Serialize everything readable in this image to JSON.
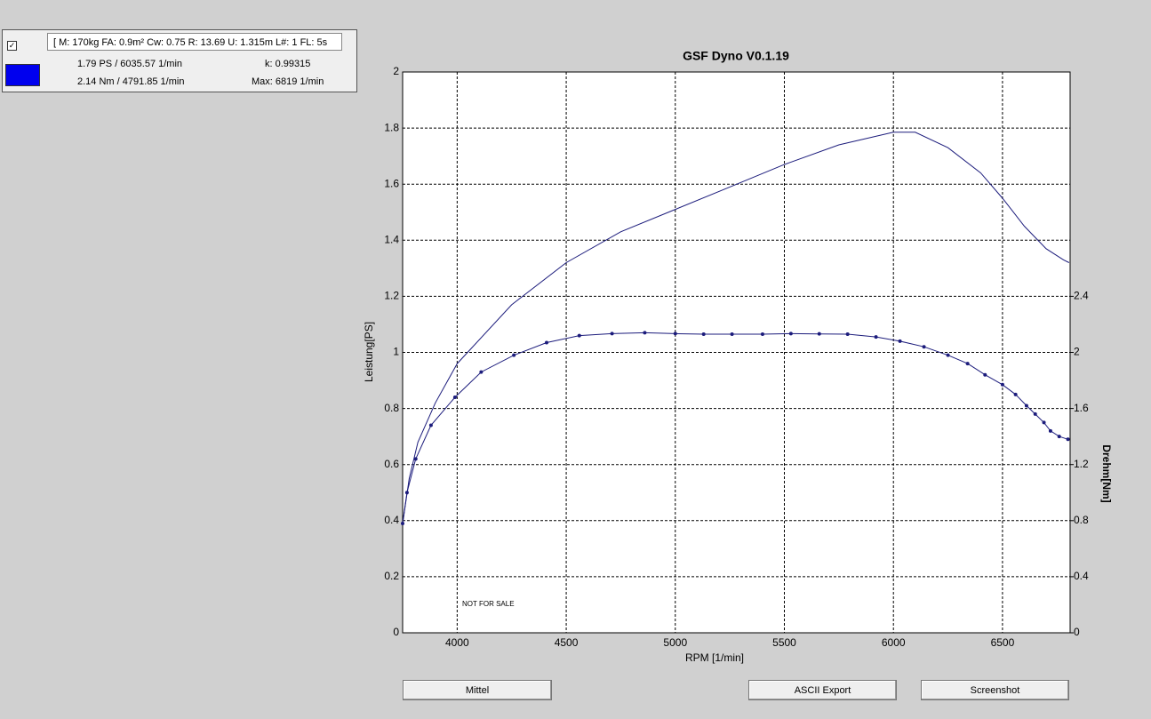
{
  "panel": {
    "settings": "[ M: 170kg  FA: 0.9m²  Cw: 0.75  R: 13.69  U: 1.315m  L#: 1  FL: 5s",
    "power_max": "1.79 PS / 6035.57 1/min",
    "torque_max": "2.14 Nm / 4791.85 1/min",
    "k": "k: 0.99315",
    "rpm_max": "Max: 6819 1/min"
  },
  "buttons": [
    "Mittel",
    "ASCII Export",
    "Screenshot"
  ],
  "chart_data": {
    "type": "line",
    "title": "GSF Dyno V0.1.19",
    "x_label": "RPM [1/min]",
    "y_label": "Leistung[PS]",
    "y2_label": "Drehm[Nm]",
    "annotation": "NOT FOR SALE",
    "xlim": [
      3750,
      6810
    ],
    "xticks": [
      4000,
      4500,
      5000,
      5500,
      6000,
      6500
    ],
    "ylim": [
      0,
      2
    ],
    "yticks": [
      0,
      0.2,
      0.4,
      0.6,
      0.8,
      1,
      1.2,
      1.4,
      1.6,
      1.8,
      2
    ],
    "y2lim": [
      0,
      4
    ],
    "y2ticks": [
      0,
      0.4,
      0.8,
      1.2,
      1.6,
      2,
      2.4
    ],
    "grid": true,
    "series": [
      {
        "color": "#1c1c7c",
        "markers": false,
        "x": [
          3750,
          3780,
          3820,
          3900,
          4000,
          4250,
          4500,
          4750,
          5000,
          5250,
          5500,
          5750,
          6000,
          6100,
          6250,
          6400,
          6500,
          6600,
          6700,
          6780,
          6805
        ],
        "values": [
          0.39,
          0.55,
          0.68,
          0.82,
          0.96,
          1.17,
          1.32,
          1.43,
          1.51,
          1.59,
          1.67,
          1.74,
          1.785,
          1.785,
          1.73,
          1.64,
          1.55,
          1.45,
          1.37,
          1.33,
          1.32
        ]
      },
      {
        "color": "#1c1c7c",
        "markers": true,
        "axis": "y2",
        "x": [
          3750,
          3770,
          3810,
          3880,
          3990,
          4110,
          4260,
          4410,
          4560,
          4710,
          4860,
          5000,
          5130,
          5260,
          5400,
          5530,
          5660,
          5790,
          5920,
          6030,
          6140,
          6250,
          6340,
          6420,
          6500,
          6560,
          6610,
          6650,
          6690,
          6720,
          6760,
          6800
        ],
        "values": [
          0.78,
          1.0,
          1.24,
          1.48,
          1.68,
          1.86,
          1.98,
          2.07,
          2.12,
          2.134,
          2.14,
          2.134,
          2.13,
          2.13,
          2.13,
          2.134,
          2.132,
          2.13,
          2.11,
          2.08,
          2.04,
          1.98,
          1.92,
          1.84,
          1.77,
          1.7,
          1.62,
          1.56,
          1.5,
          1.44,
          1.4,
          1.38
        ]
      }
    ]
  }
}
